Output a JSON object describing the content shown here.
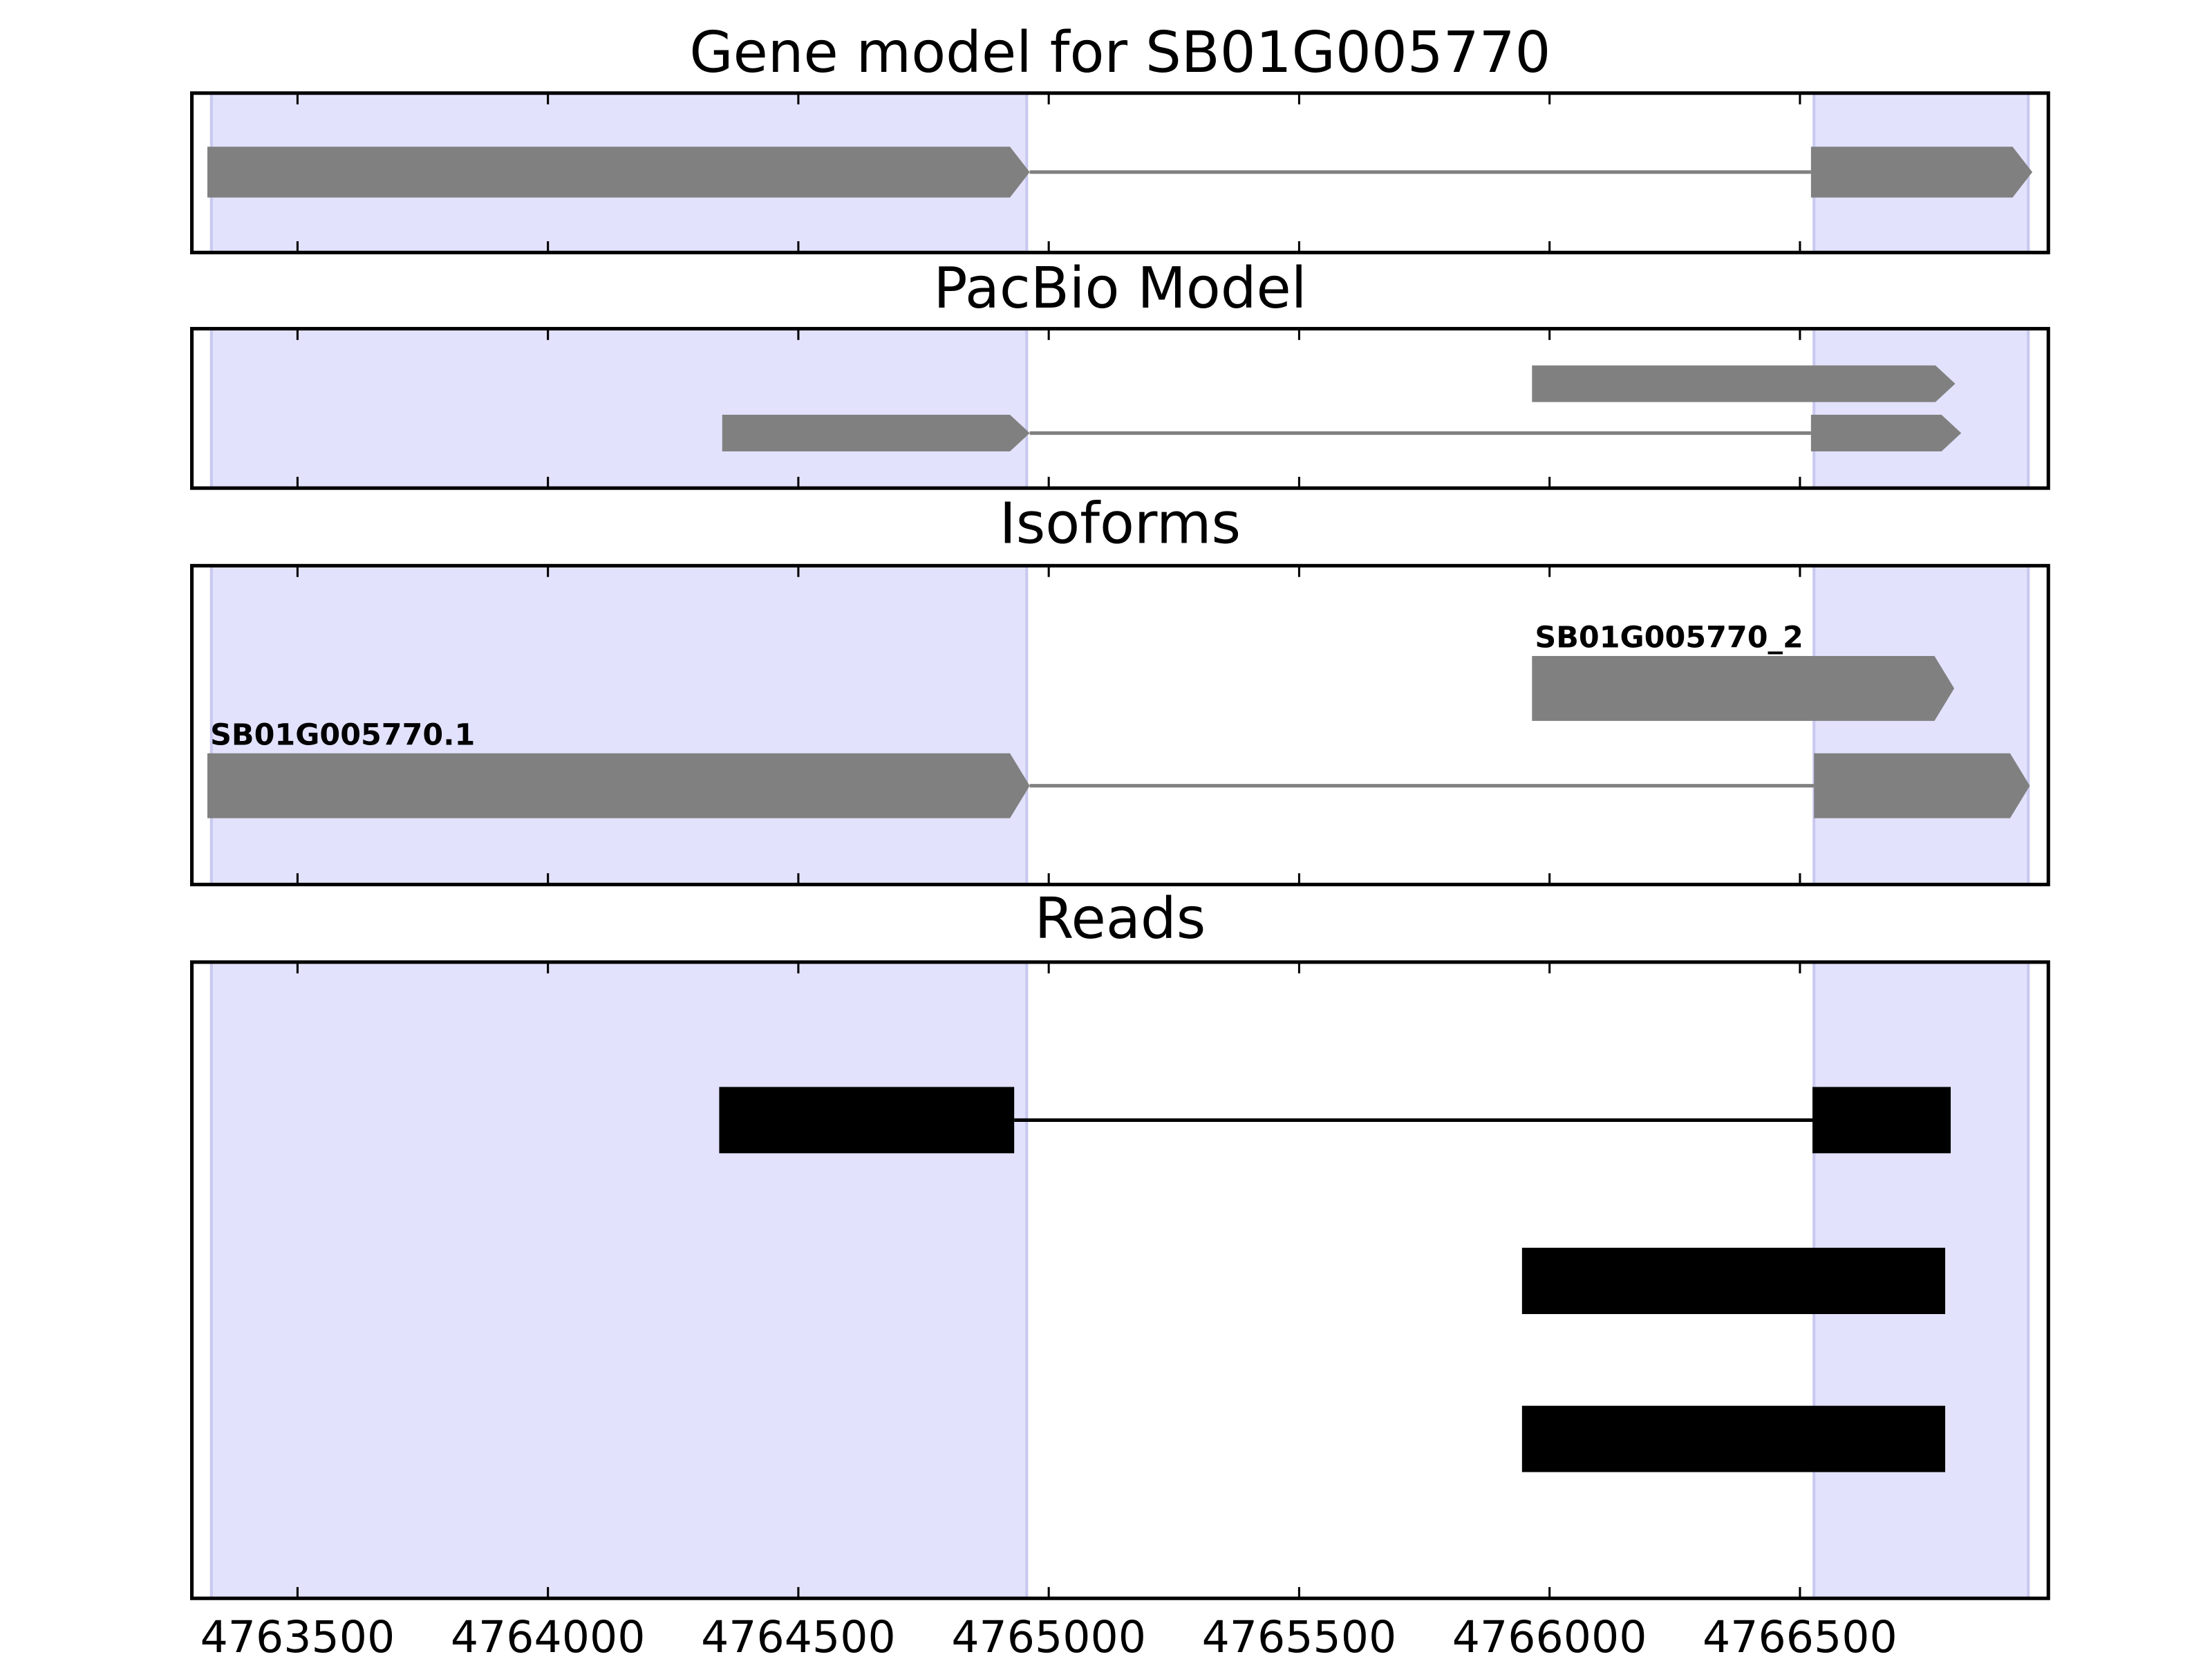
{
  "chart_data": [
    {
      "type": "gene",
      "title": "Gene model for SB01G005770",
      "xlim": [
        4763289,
        4766996
      ],
      "xticks": [
        4763500,
        4764000,
        4764500,
        4765000,
        4765500,
        4766000,
        4766500
      ],
      "regions": [
        [
          4763328,
          4764956
        ],
        [
          4766528,
          4766956
        ]
      ],
      "region_color": "#e2e2fc",
      "color": "#808080",
      "tracks": [
        {
          "exons": [
            [
              4763320,
              4764962
            ],
            [
              4766522,
              4766964
            ]
          ]
        }
      ]
    },
    {
      "type": "gene",
      "title": "PacBio Model",
      "xlim": [
        4763289,
        4766996
      ],
      "xticks": [
        4763500,
        4764000,
        4764500,
        4765000,
        4765500,
        4766000,
        4766500
      ],
      "regions": [
        [
          4763328,
          4764956
        ],
        [
          4766528,
          4766956
        ]
      ],
      "region_color": "#e2e2fc",
      "color": "#808080",
      "tracks": [
        {
          "exons": [
            [
              4765965,
              4766810
            ]
          ]
        },
        {
          "exons": [
            [
              4764348,
              4764962
            ],
            [
              4766522,
              4766822
            ]
          ]
        }
      ]
    },
    {
      "type": "gene",
      "title": "Isoforms",
      "xlim": [
        4763289,
        4766996
      ],
      "xticks": [
        4763500,
        4764000,
        4764500,
        4765000,
        4765500,
        4766000,
        4766500
      ],
      "regions": [
        [
          4763328,
          4764956
        ],
        [
          4766528,
          4766956
        ]
      ],
      "region_color": "#e2e2fc",
      "color": "#808080",
      "tracks": [
        {
          "label": "SB01G005770_2",
          "exons": [
            [
              4765965,
              4766808
            ]
          ]
        },
        {
          "label": "SB01G005770.1",
          "exons": [
            [
              4763320,
              4764962
            ],
            [
              4766528,
              4766959
            ]
          ]
        }
      ]
    },
    {
      "type": "reads",
      "title": "Reads",
      "xlim": [
        4763289,
        4766996
      ],
      "xticks": [
        4763500,
        4764000,
        4764500,
        4765000,
        4765500,
        4766000,
        4766500
      ],
      "regions": [
        [
          4763328,
          4764956
        ],
        [
          4766528,
          4766956
        ]
      ],
      "region_color": "#e2e2fc",
      "color": "#000000",
      "tracks": [
        {
          "exons": [
            [
              4764342,
              4764931
            ],
            [
              4766525,
              4766801
            ]
          ]
        },
        {
          "exons": [
            [
              4765945,
              4766790
            ]
          ]
        },
        {
          "exons": [
            [
              4765945,
              4766790
            ]
          ]
        }
      ]
    }
  ]
}
